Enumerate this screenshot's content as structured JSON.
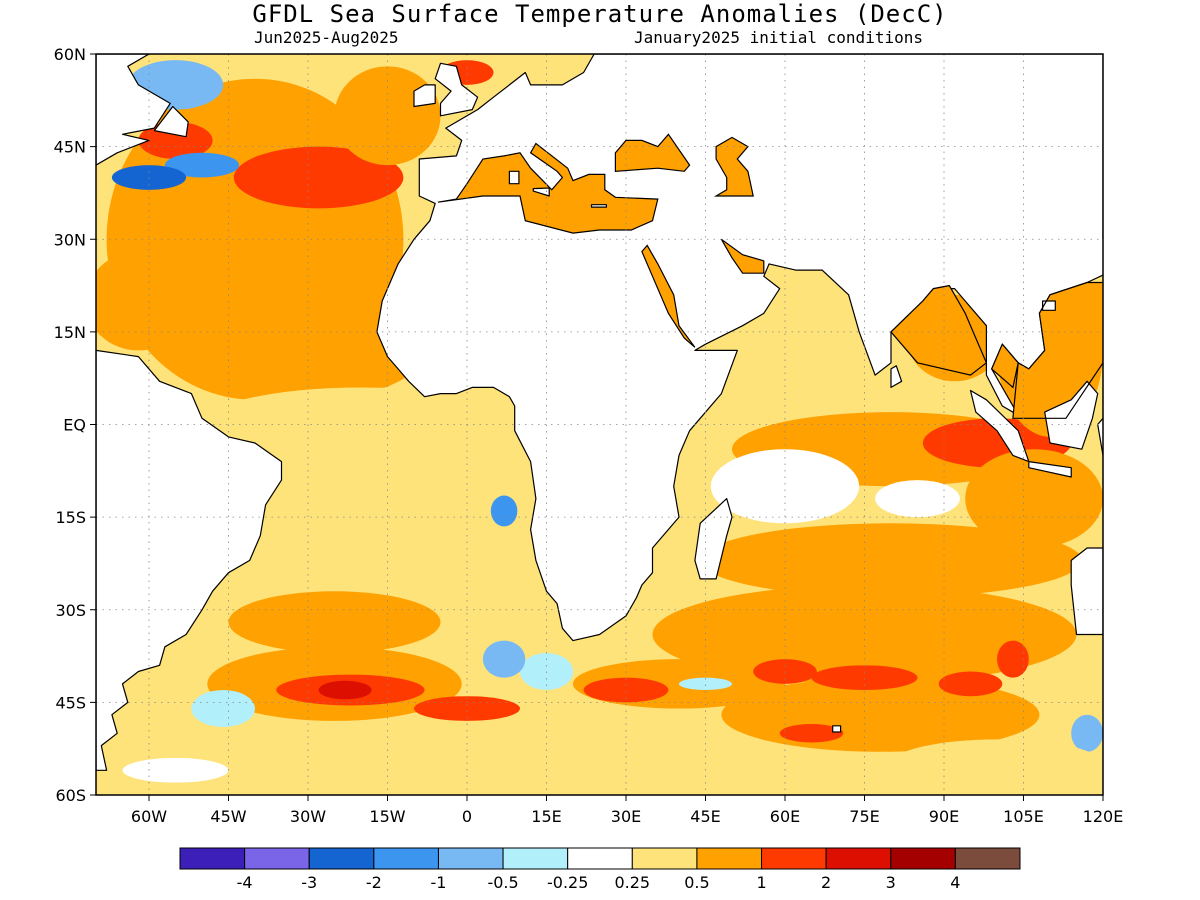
{
  "header": {
    "title": "GFDL Sea Surface Temperature Anomalies (DecC)",
    "period": "Jun2025-Aug2025",
    "initial_conditions": "January2025 initial conditions"
  },
  "map": {
    "lon_range": [
      -70,
      120
    ],
    "lat_range": [
      -60,
      60
    ],
    "grid": "dotted",
    "lat_ticks": [
      {
        "value": 60,
        "label": "60N"
      },
      {
        "value": 45,
        "label": "45N"
      },
      {
        "value": 30,
        "label": "30N"
      },
      {
        "value": 15,
        "label": "15N"
      },
      {
        "value": 0,
        "label": "EQ"
      },
      {
        "value": -15,
        "label": "15S"
      },
      {
        "value": -30,
        "label": "30S"
      },
      {
        "value": -45,
        "label": "45S"
      },
      {
        "value": -60,
        "label": "60S"
      }
    ],
    "lon_ticks": [
      {
        "value": -60,
        "label": "60W"
      },
      {
        "value": -45,
        "label": "45W"
      },
      {
        "value": -30,
        "label": "30W"
      },
      {
        "value": -15,
        "label": "15W"
      },
      {
        "value": 0,
        "label": "0"
      },
      {
        "value": 15,
        "label": "15E"
      },
      {
        "value": 30,
        "label": "30E"
      },
      {
        "value": 45,
        "label": "45E"
      },
      {
        "value": 60,
        "label": "60E"
      },
      {
        "value": 75,
        "label": "75E"
      },
      {
        "value": 90,
        "label": "90E"
      },
      {
        "value": 105,
        "label": "105E"
      },
      {
        "value": 120,
        "label": "120E"
      }
    ],
    "land_color": "#ffffff",
    "coast_color": "#000000"
  },
  "colorbar": {
    "colors": [
      "#3b1fb8",
      "#7a64e8",
      "#1465d1",
      "#3c96ef",
      "#78b9f4",
      "#b1effa",
      "#ffffff",
      "#fee27a",
      "#ffa100",
      "#ff3a00",
      "#dc0f00",
      "#a40000",
      "#7b4c3c"
    ],
    "labels": [
      "-4",
      "-3",
      "-2",
      "-1",
      "-0.5",
      "-0.25",
      "0.25",
      "0.5",
      "1",
      "2",
      "3",
      "4"
    ]
  },
  "anomaly_patches": [
    {
      "lon": -40,
      "lat": 30,
      "rx": 28,
      "ry": 26,
      "level": 8
    },
    {
      "lon": -62,
      "lat": 20,
      "rx": 10,
      "ry": 8,
      "level": 8
    },
    {
      "lon": -30,
      "lat": 12,
      "rx": 22,
      "ry": 8,
      "level": 8
    },
    {
      "lon": -28,
      "lat": 40,
      "rx": 16,
      "ry": 5,
      "level": 9
    },
    {
      "lon": -55,
      "lat": 46,
      "rx": 7,
      "ry": 3,
      "level": 9
    },
    {
      "lon": -55,
      "lat": 55,
      "rx": 9,
      "ry": 4,
      "level": 4
    },
    {
      "lon": -50,
      "lat": 42,
      "rx": 7,
      "ry": 2,
      "level": 3
    },
    {
      "lon": -60,
      "lat": 40,
      "rx": 7,
      "ry": 2,
      "level": 2
    },
    {
      "lon": -15,
      "lat": 50,
      "rx": 10,
      "ry": 8,
      "level": 8
    },
    {
      "lon": 0,
      "lat": 57,
      "rx": 5,
      "ry": 2,
      "level": 9
    },
    {
      "lon": 22,
      "lat": 35,
      "rx": 10,
      "ry": 3,
      "level": 9
    },
    {
      "lon": 33,
      "lat": 44,
      "rx": 4,
      "ry": 1.5,
      "level": 9
    },
    {
      "lon": 4,
      "lat": 40,
      "rx": 5,
      "ry": 3,
      "level": 8
    },
    {
      "lon": -20,
      "lat": 0,
      "rx": 30,
      "ry": 6,
      "level": 7
    },
    {
      "lon": 10,
      "lat": -8,
      "rx": 6,
      "ry": 6,
      "level": 7
    },
    {
      "lon": 7,
      "lat": -14,
      "rx": 2.5,
      "ry": 2.5,
      "level": 3
    },
    {
      "lon": 70,
      "lat": 0,
      "rx": 30,
      "ry": 12,
      "level": 7
    },
    {
      "lon": 80,
      "lat": -4,
      "rx": 30,
      "ry": 6,
      "level": 8
    },
    {
      "lon": 100,
      "lat": -3,
      "rx": 14,
      "ry": 4,
      "level": 9
    },
    {
      "lon": 107,
      "lat": -12,
      "rx": 13,
      "ry": 8,
      "level": 8
    },
    {
      "lon": 92,
      "lat": 14,
      "rx": 9,
      "ry": 7,
      "level": 8
    },
    {
      "lon": 110,
      "lat": 12,
      "rx": 10,
      "ry": 14,
      "level": 8
    },
    {
      "lon": 60,
      "lat": -10,
      "rx": 14,
      "ry": 6,
      "level": 6
    },
    {
      "lon": 85,
      "lat": -12,
      "rx": 8,
      "ry": 3,
      "level": 6
    },
    {
      "lon": 80,
      "lat": -22,
      "rx": 36,
      "ry": 6,
      "level": 8
    },
    {
      "lon": 75,
      "lat": -34,
      "rx": 40,
      "ry": 8,
      "level": 8
    },
    {
      "lon": 40,
      "lat": -42,
      "rx": 20,
      "ry": 4,
      "level": 8
    },
    {
      "lon": 78,
      "lat": -47,
      "rx": 30,
      "ry": 6,
      "level": 8
    },
    {
      "lon": -25,
      "lat": -42,
      "rx": 24,
      "ry": 6,
      "level": 8
    },
    {
      "lon": -25,
      "lat": -32,
      "rx": 20,
      "ry": 5,
      "level": 8
    },
    {
      "lon": -22,
      "lat": -43,
      "rx": 14,
      "ry": 2.5,
      "level": 9
    },
    {
      "lon": -23,
      "lat": -43,
      "rx": 5,
      "ry": 1.5,
      "level": 10
    },
    {
      "lon": 30,
      "lat": -43,
      "rx": 8,
      "ry": 2,
      "level": 9
    },
    {
      "lon": 75,
      "lat": -41,
      "rx": 10,
      "ry": 2,
      "level": 9
    },
    {
      "lon": 60,
      "lat": -40,
      "rx": 6,
      "ry": 2,
      "level": 9
    },
    {
      "lon": 95,
      "lat": -42,
      "rx": 6,
      "ry": 2,
      "level": 9
    },
    {
      "lon": 103,
      "lat": -38,
      "rx": 3,
      "ry": 3,
      "level": 9
    },
    {
      "lon": 65,
      "lat": -50,
      "rx": 6,
      "ry": 1.5,
      "level": 9
    },
    {
      "lon": 0,
      "lat": -46,
      "rx": 10,
      "ry": 2,
      "level": 9
    },
    {
      "lon": 15,
      "lat": -40,
      "rx": 5,
      "ry": 3,
      "level": 5
    },
    {
      "lon": 7,
      "lat": -38,
      "rx": 4,
      "ry": 3,
      "level": 4
    },
    {
      "lon": -46,
      "lat": -46,
      "rx": 6,
      "ry": 3,
      "level": 5
    },
    {
      "lon": 45,
      "lat": -42,
      "rx": 5,
      "ry": 1,
      "level": 5
    },
    {
      "lon": 117,
      "lat": -50,
      "rx": 3,
      "ry": 3,
      "level": 4
    },
    {
      "lon": -55,
      "lat": -56,
      "rx": 10,
      "ry": 2,
      "level": 6
    },
    {
      "lon": 0,
      "lat": -56,
      "rx": 30,
      "ry": 3,
      "level": 7
    },
    {
      "lon": 100,
      "lat": -55,
      "rx": 20,
      "ry": 4,
      "level": 7
    }
  ]
}
